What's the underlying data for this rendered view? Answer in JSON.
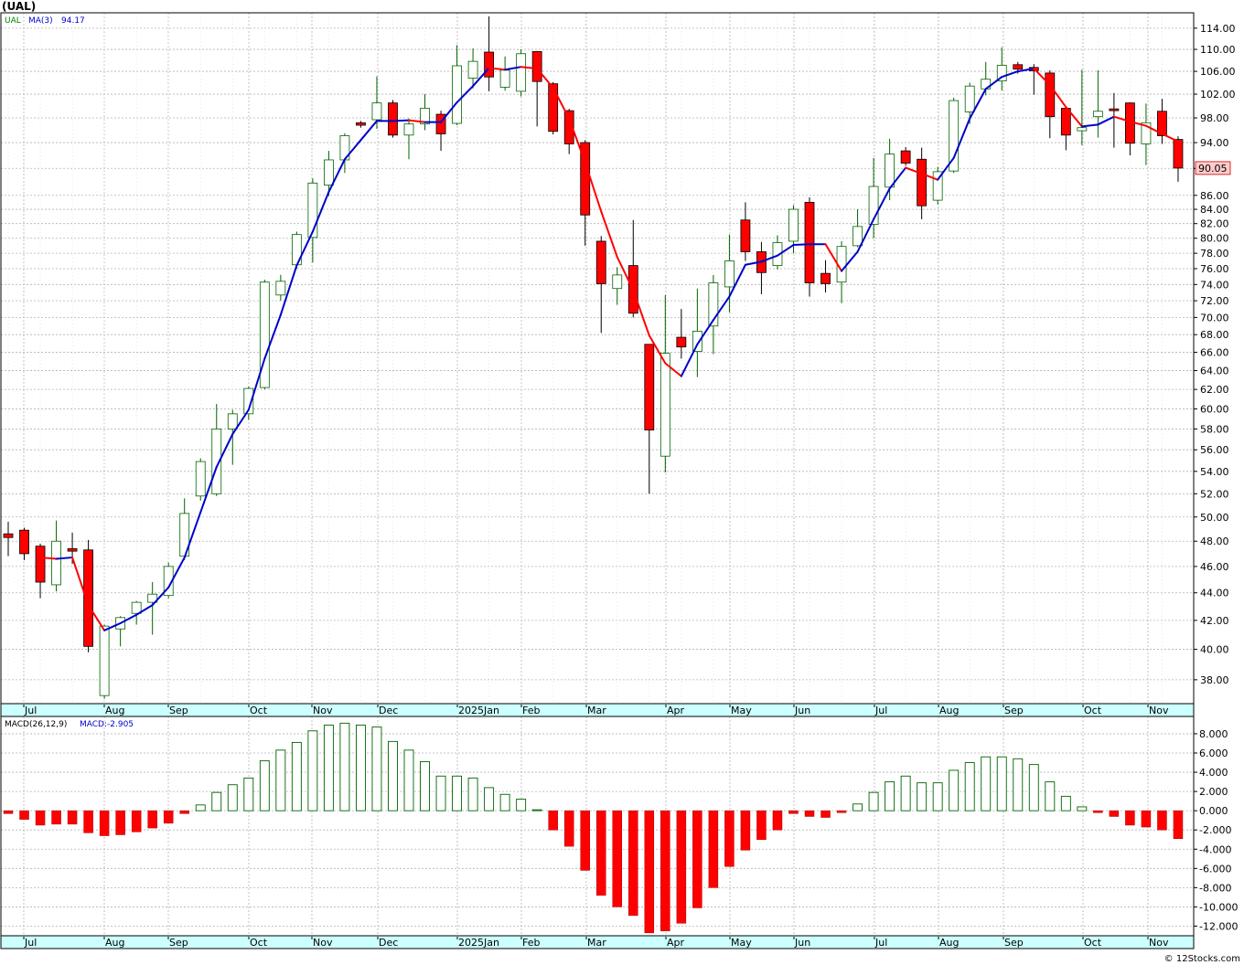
{
  "header": {
    "symbol": "(UAL)",
    "price_legend_symbol": "UAL",
    "price_legend_ma": "MA(3)",
    "price_legend_ma_value": "94.17",
    "last_price_label": "90.05",
    "macd_legend_name": "MACD(26,12,9)",
    "macd_legend_value": "MACD:-2.905",
    "credit": "© 12Stocks.com"
  },
  "colors": {
    "up_candle": "#006400",
    "down_candle": "#ff0000",
    "ma_up": "#0000cc",
    "ma_down": "#ff0000",
    "grid": "#b4b4b4",
    "last_price_bg": "#ffcccc"
  },
  "chart_data": [
    {
      "type": "candlestick",
      "title": "(UAL)",
      "interval": "weekly",
      "x_month_labels": [
        "Jul",
        "Aug",
        "Sep",
        "Oct",
        "Nov",
        "Dec",
        "2025Jan",
        "Feb",
        "Mar",
        "Apr",
        "May",
        "Jun",
        "Jul",
        "Aug",
        "Sep",
        "Oct",
        "Nov"
      ],
      "y_scale": "log",
      "y_ticks": [
        38,
        40,
        42,
        44,
        46,
        48,
        50,
        52,
        54,
        56,
        58,
        60,
        62,
        64,
        66,
        68,
        70,
        72,
        74,
        76,
        78,
        80,
        82,
        84,
        86,
        90,
        94,
        98,
        102,
        106,
        110,
        114
      ],
      "y_range": [
        36.5,
        117
      ],
      "grid": true,
      "moving_average": {
        "name": "MA(3)",
        "last_value": 94.17
      },
      "last_price": 90.05,
      "candles": [
        {
          "o": 48.6,
          "h": 49.6,
          "l": 46.8,
          "c": 48.3
        },
        {
          "o": 48.9,
          "h": 49.1,
          "l": 46.5,
          "c": 47.0
        },
        {
          "o": 47.6,
          "h": 47.8,
          "l": 43.6,
          "c": 44.8
        },
        {
          "o": 44.6,
          "h": 49.7,
          "l": 44.1,
          "c": 48.0
        },
        {
          "o": 47.4,
          "h": 48.7,
          "l": 46.2,
          "c": 47.2
        },
        {
          "o": 47.3,
          "h": 48.1,
          "l": 39.8,
          "c": 40.2
        },
        {
          "o": 37.0,
          "h": 41.7,
          "l": 36.8,
          "c": 41.6
        },
        {
          "o": 41.4,
          "h": 42.3,
          "l": 40.2,
          "c": 42.2
        },
        {
          "o": 42.5,
          "h": 43.4,
          "l": 41.7,
          "c": 43.3
        },
        {
          "o": 43.3,
          "h": 44.8,
          "l": 41.0,
          "c": 43.9
        },
        {
          "o": 43.8,
          "h": 46.3,
          "l": 43.6,
          "c": 46.0
        },
        {
          "o": 46.8,
          "h": 51.6,
          "l": 46.5,
          "c": 50.3
        },
        {
          "o": 51.8,
          "h": 55.2,
          "l": 51.4,
          "c": 54.9
        },
        {
          "o": 52.0,
          "h": 60.5,
          "l": 51.8,
          "c": 58.0
        },
        {
          "o": 58.0,
          "h": 59.9,
          "l": 54.6,
          "c": 59.5
        },
        {
          "o": 59.5,
          "h": 62.3,
          "l": 58.9,
          "c": 62.1
        },
        {
          "o": 62.2,
          "h": 74.6,
          "l": 62.0,
          "c": 74.3
        },
        {
          "o": 72.7,
          "h": 75.2,
          "l": 72.0,
          "c": 74.4
        },
        {
          "o": 76.5,
          "h": 80.9,
          "l": 76.0,
          "c": 80.5
        },
        {
          "o": 80.1,
          "h": 88.5,
          "l": 76.8,
          "c": 87.8
        },
        {
          "o": 87.5,
          "h": 92.7,
          "l": 85.9,
          "c": 91.3
        },
        {
          "o": 91.3,
          "h": 95.5,
          "l": 89.3,
          "c": 95.1
        },
        {
          "o": 97.2,
          "h": 97.5,
          "l": 96.4,
          "c": 96.8
        },
        {
          "o": 97.7,
          "h": 105.1,
          "l": 96.2,
          "c": 100.5
        },
        {
          "o": 100.5,
          "h": 101.0,
          "l": 94.8,
          "c": 95.2
        },
        {
          "o": 95.2,
          "h": 97.9,
          "l": 91.4,
          "c": 97.0
        },
        {
          "o": 97.0,
          "h": 102.0,
          "l": 96.0,
          "c": 99.6
        },
        {
          "o": 98.6,
          "h": 99.2,
          "l": 92.7,
          "c": 95.4
        },
        {
          "o": 97.1,
          "h": 110.8,
          "l": 96.8,
          "c": 107.0
        },
        {
          "o": 104.8,
          "h": 110.2,
          "l": 103.0,
          "c": 107.8
        },
        {
          "o": 109.5,
          "h": 116.3,
          "l": 102.5,
          "c": 105.0
        },
        {
          "o": 103.2,
          "h": 108.7,
          "l": 102.6,
          "c": 106.2
        },
        {
          "o": 102.5,
          "h": 110.0,
          "l": 101.6,
          "c": 109.2
        },
        {
          "o": 109.6,
          "h": 109.7,
          "l": 96.6,
          "c": 104.2
        },
        {
          "o": 103.8,
          "h": 104.1,
          "l": 95.3,
          "c": 95.8
        },
        {
          "o": 99.2,
          "h": 99.5,
          "l": 92.2,
          "c": 93.8
        },
        {
          "o": 94.0,
          "h": 94.4,
          "l": 79.0,
          "c": 83.2
        },
        {
          "o": 79.6,
          "h": 80.3,
          "l": 68.2,
          "c": 74.1
        },
        {
          "o": 73.5,
          "h": 76.2,
          "l": 71.5,
          "c": 75.2
        },
        {
          "o": 76.4,
          "h": 82.5,
          "l": 70.0,
          "c": 70.5
        },
        {
          "o": 66.9,
          "h": 66.9,
          "l": 52.0,
          "c": 57.9
        },
        {
          "o": 55.4,
          "h": 72.7,
          "l": 53.9,
          "c": 65.9
        },
        {
          "o": 67.7,
          "h": 71.0,
          "l": 65.3,
          "c": 66.6
        },
        {
          "o": 66.1,
          "h": 73.5,
          "l": 63.3,
          "c": 68.4
        },
        {
          "o": 69.0,
          "h": 75.2,
          "l": 65.8,
          "c": 74.2
        },
        {
          "o": 73.7,
          "h": 80.5,
          "l": 70.6,
          "c": 77.0
        },
        {
          "o": 82.5,
          "h": 85.0,
          "l": 77.0,
          "c": 78.2
        },
        {
          "o": 78.2,
          "h": 79.5,
          "l": 72.8,
          "c": 75.5
        },
        {
          "o": 76.4,
          "h": 80.4,
          "l": 75.9,
          "c": 79.4
        },
        {
          "o": 79.6,
          "h": 84.6,
          "l": 78.0,
          "c": 84.0
        },
        {
          "o": 85.0,
          "h": 85.7,
          "l": 72.5,
          "c": 74.2
        },
        {
          "o": 75.4,
          "h": 77.1,
          "l": 73.0,
          "c": 74.1
        },
        {
          "o": 74.3,
          "h": 79.6,
          "l": 71.7,
          "c": 78.9
        },
        {
          "o": 79.0,
          "h": 84.0,
          "l": 78.8,
          "c": 81.6
        },
        {
          "o": 81.9,
          "h": 91.6,
          "l": 80.0,
          "c": 87.3
        },
        {
          "o": 87.2,
          "h": 94.6,
          "l": 85.3,
          "c": 92.2
        },
        {
          "o": 92.7,
          "h": 93.3,
          "l": 90.4,
          "c": 90.8
        },
        {
          "o": 91.4,
          "h": 93.2,
          "l": 82.6,
          "c": 84.5
        },
        {
          "o": 85.3,
          "h": 90.2,
          "l": 84.7,
          "c": 89.5
        },
        {
          "o": 89.6,
          "h": 101.4,
          "l": 89.3,
          "c": 100.9
        },
        {
          "o": 99.0,
          "h": 104.0,
          "l": 97.0,
          "c": 103.4
        },
        {
          "o": 102.9,
          "h": 107.7,
          "l": 101.8,
          "c": 104.6
        },
        {
          "o": 104.3,
          "h": 110.4,
          "l": 102.6,
          "c": 107.1
        },
        {
          "o": 107.2,
          "h": 107.7,
          "l": 105.6,
          "c": 106.4
        },
        {
          "o": 106.7,
          "h": 107.3,
          "l": 101.9,
          "c": 106.1
        },
        {
          "o": 105.7,
          "h": 106.2,
          "l": 94.7,
          "c": 98.2
        },
        {
          "o": 99.6,
          "h": 99.8,
          "l": 92.8,
          "c": 95.2
        },
        {
          "o": 95.9,
          "h": 106.3,
          "l": 93.6,
          "c": 96.4
        },
        {
          "o": 98.2,
          "h": 106.2,
          "l": 94.8,
          "c": 99.1
        },
        {
          "o": 99.5,
          "h": 102.2,
          "l": 93.2,
          "c": 99.2
        },
        {
          "o": 100.5,
          "h": 100.6,
          "l": 92.0,
          "c": 93.9
        },
        {
          "o": 93.8,
          "h": 100.4,
          "l": 90.5,
          "c": 97.2
        },
        {
          "o": 99.1,
          "h": 101.2,
          "l": 93.8,
          "c": 95.1
        },
        {
          "o": 94.5,
          "h": 95.0,
          "l": 88.0,
          "c": 90.05
        }
      ],
      "ma3": [
        null,
        null,
        46.7,
        46.6,
        46.7,
        43.1,
        41.3,
        41.8,
        42.4,
        43.1,
        44.4,
        46.7,
        50.4,
        54.4,
        57.5,
        59.9,
        65.3,
        70.3,
        76.4,
        80.9,
        86.5,
        91.4,
        94.4,
        97.5,
        97.5,
        97.6,
        97.3,
        97.3,
        100.6,
        103.4,
        106.6,
        106.3,
        106.8,
        106.5,
        103.1,
        97.9,
        90.9,
        83.7,
        77.5,
        73.3,
        67.9,
        64.8,
        63.4,
        66.9,
        69.7,
        72.5,
        76.5,
        76.9,
        77.7,
        79.1,
        79.2,
        79.2,
        75.7,
        78.2,
        82.6,
        87.0,
        90.1,
        89.2,
        88.3,
        91.6,
        97.9,
        102.9,
        105.0,
        106.0,
        106.5,
        103.6,
        99.8,
        96.6,
        96.9,
        98.2,
        97.4,
        96.7,
        95.4,
        94.17
      ]
    },
    {
      "type": "bar",
      "title": "MACD(26,12,9)",
      "current_value": -2.905,
      "y_ticks": [
        -12,
        -10,
        -8,
        -6,
        -4,
        -2,
        0,
        2,
        4,
        6,
        8
      ],
      "y_tick_labels": [
        "-12.000",
        "-10.000",
        "-8.000",
        "-6.000",
        "-4.000",
        "-2.000",
        "0.000",
        "2.000",
        "4.000",
        "6.000",
        "8.000"
      ],
      "y_range": [
        -13,
        9.8
      ],
      "grid": true,
      "x_month_labels": [
        "Jul",
        "Aug",
        "Sep",
        "Oct",
        "Nov",
        "Dec",
        "2025Jan",
        "Feb",
        "Mar",
        "Apr",
        "May",
        "Jun",
        "Jul",
        "Aug",
        "Sep",
        "Oct",
        "Nov"
      ],
      "values": [
        -0.3,
        -0.9,
        -1.5,
        -1.4,
        -1.4,
        -2.3,
        -2.6,
        -2.5,
        -2.2,
        -1.8,
        -1.3,
        -0.3,
        0.6,
        1.9,
        2.7,
        3.4,
        5.2,
        6.3,
        7.1,
        8.3,
        8.9,
        9.1,
        8.9,
        8.7,
        7.2,
        6.3,
        5.1,
        3.6,
        3.6,
        3.4,
        2.4,
        1.7,
        1.2,
        0.1,
        -2.0,
        -3.7,
        -6.2,
        -8.8,
        -10.0,
        -10.9,
        -12.7,
        -12.5,
        -11.7,
        -10.1,
        -8.0,
        -5.8,
        -4.1,
        -3.0,
        -2.0,
        -0.3,
        -0.6,
        -0.7,
        -0.2,
        0.7,
        1.9,
        3.0,
        3.6,
        2.9,
        2.9,
        4.2,
        5.0,
        5.6,
        5.6,
        5.4,
        4.8,
        3.0,
        1.5,
        0.4,
        -0.2,
        -0.6,
        -1.5,
        -1.7,
        -2.0,
        -2.905
      ]
    }
  ]
}
